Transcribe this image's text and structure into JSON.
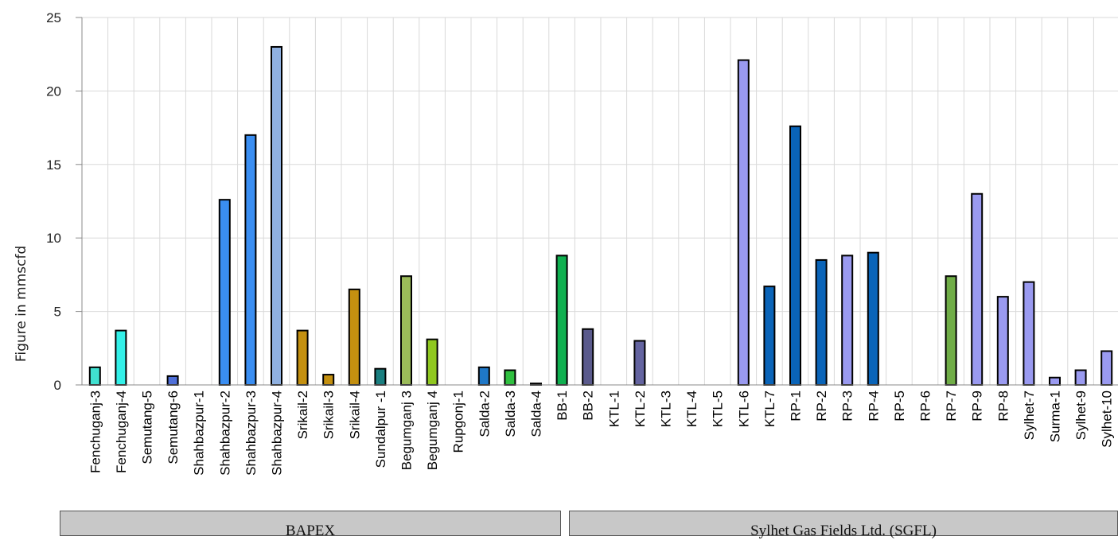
{
  "chart_data": {
    "type": "bar",
    "ylabel": "Figure in mmscfd",
    "ylim": [
      0,
      25
    ],
    "yticks": [
      0,
      5,
      10,
      15,
      20,
      25
    ],
    "grid": true,
    "legend": "none",
    "categories": [
      "Fenchuganj-3",
      "Fenchuganj-4",
      "Semutang-5",
      "Semutang-6",
      "Shahbazpur-1",
      "Shahbazpur-2",
      "Shahbazpur-3",
      "Shahbazpur-4",
      "Srikail-2",
      "Srikail-3",
      "Srikail-4",
      "Sundalpur -1",
      "Begumganj 3",
      "Begumganj 4",
      "Rupgonj-1",
      "Salda-2",
      "Salda-3",
      "Salda-4",
      "BB-1",
      "BB-2",
      "KTL-1",
      "KTL-2",
      "KTL-3",
      "KTL-4",
      "KTL-5",
      "KTL-6",
      "KTL-7",
      "RP-1",
      "RP-2",
      "RP-3",
      "RP-4",
      "RP-5",
      "RP-6",
      "RP-7",
      "RP-9",
      "RP-8",
      "Sylhet-7",
      "Surma-1",
      "Sylhet-9",
      "Sylhet-10"
    ],
    "values": [
      1.2,
      3.7,
      0,
      0.6,
      0,
      12.6,
      17.0,
      23.0,
      3.7,
      0.7,
      6.5,
      1.1,
      7.4,
      3.1,
      0,
      1.2,
      1.0,
      0.1,
      8.8,
      3.8,
      0,
      3.0,
      0,
      0,
      0,
      22.1,
      6.7,
      17.6,
      8.5,
      8.8,
      9.0,
      0,
      0,
      7.4,
      13.0,
      6.0,
      7.0,
      0.5,
      1.0,
      2.3
    ],
    "bar_colors": [
      "#40E0D0",
      "#33F0E8",
      "#4F81BD",
      "#4F6FD8",
      "#3E8EF0",
      "#3A8EF2",
      "#3A8EF2",
      "#8FB0E0",
      "#C49010",
      "#C49010",
      "#C49010",
      "#1A7F80",
      "#9BBB59",
      "#90C820",
      "#4472C4",
      "#1F78C8",
      "#30C040",
      "#222222",
      "#10B050",
      "#5A5A8C",
      "#5A5A8C",
      "#6464A0",
      "#5A5A8C",
      "#5A5A8C",
      "#5A5A8C",
      "#9A9AF0",
      "#0A64B8",
      "#0A64B8",
      "#0A64B8",
      "#9A9AF0",
      "#0A64B8",
      "#0A64B8",
      "#0A64B8",
      "#70AD47",
      "#9A9AF0",
      "#9A9AF0",
      "#9A9AF0",
      "#9A9AF0",
      "#9A9AF0",
      "#9A9AF0"
    ],
    "groups": [
      {
        "label": "BAPEX",
        "start": 0,
        "end": 17
      },
      {
        "label": "Sylhet Gas Fields Ltd. (SGFL)",
        "start": 18,
        "end": 39
      }
    ]
  }
}
